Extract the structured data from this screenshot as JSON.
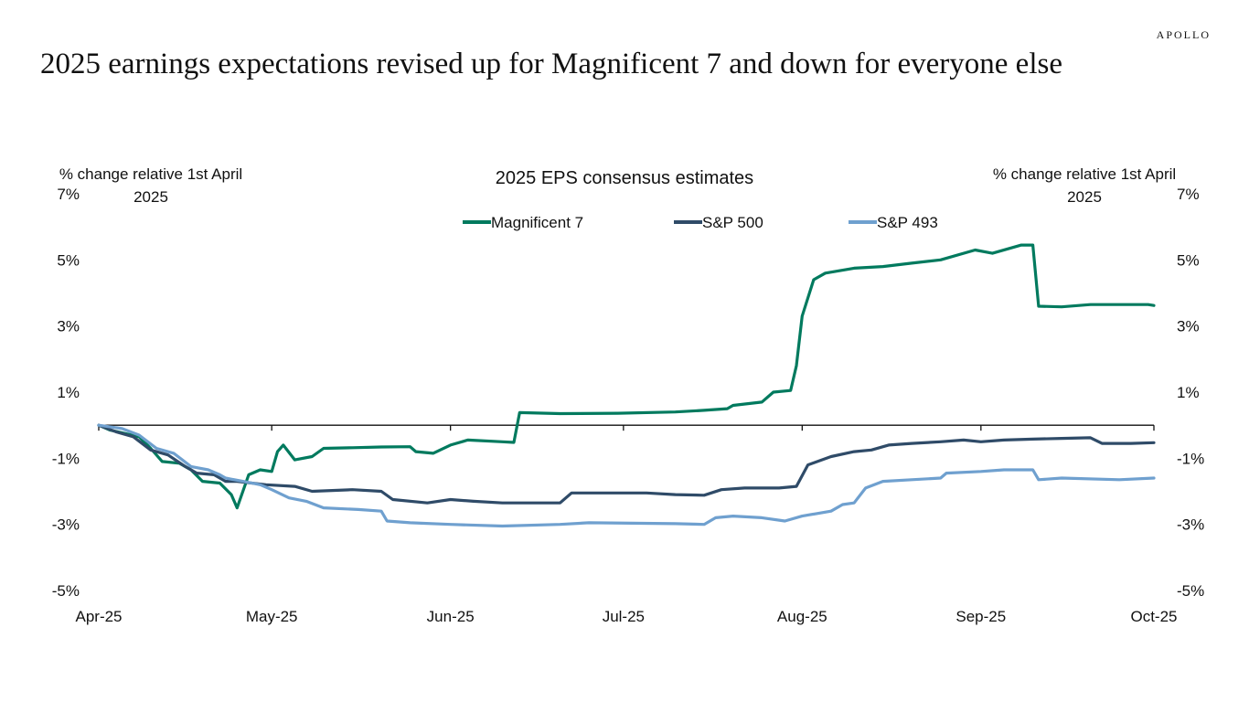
{
  "brand": "APOLLO",
  "headline": "2025 earnings expectations revised up for Magnificent 7 and down for everyone else",
  "chart_data": {
    "type": "line",
    "title": "2025 EPS consensus estimates",
    "ylabel_left": [
      "% change relative 1st April",
      "2025"
    ],
    "ylabel_right": [
      "% change relative 1st April",
      "2025"
    ],
    "ylim": [
      -5,
      7
    ],
    "yticks": [
      7,
      5,
      3,
      1,
      -1,
      -3,
      -5
    ],
    "ytick_labels": [
      "7%",
      "5%",
      "3%",
      "1%",
      "-1%",
      "-3%",
      "-5%"
    ],
    "x_range": [
      "2025-04-01",
      "2025-10-01"
    ],
    "xticks": [
      "2025-04-01",
      "2025-05-01",
      "2025-06-01",
      "2025-07-01",
      "2025-08-01",
      "2025-09-01",
      "2025-10-01"
    ],
    "xtick_labels": [
      "Apr-25",
      "May-25",
      "Jun-25",
      "Jul-25",
      "Aug-25",
      "Sep-25",
      "Oct-25"
    ],
    "legend_position": "top-center",
    "series": [
      {
        "name": "Magnificent 7",
        "color": "#007a5e",
        "points": [
          [
            "2025-04-01",
            0.0
          ],
          [
            "2025-04-03",
            -0.15
          ],
          [
            "2025-04-08",
            -0.35
          ],
          [
            "2025-04-10",
            -0.7
          ],
          [
            "2025-04-12",
            -1.1
          ],
          [
            "2025-04-15",
            -1.15
          ],
          [
            "2025-04-17",
            -1.35
          ],
          [
            "2025-04-19",
            -1.7
          ],
          [
            "2025-04-22",
            -1.75
          ],
          [
            "2025-04-24",
            -2.1
          ],
          [
            "2025-04-25",
            -2.5
          ],
          [
            "2025-04-27",
            -1.5
          ],
          [
            "2025-04-29",
            -1.35
          ],
          [
            "2025-05-01",
            -1.4
          ],
          [
            "2025-05-02",
            -0.8
          ],
          [
            "2025-05-03",
            -0.6
          ],
          [
            "2025-05-05",
            -1.05
          ],
          [
            "2025-05-08",
            -0.95
          ],
          [
            "2025-05-10",
            -0.7
          ],
          [
            "2025-05-15",
            -0.68
          ],
          [
            "2025-05-20",
            -0.66
          ],
          [
            "2025-05-25",
            -0.65
          ],
          [
            "2025-05-26",
            -0.8
          ],
          [
            "2025-05-29",
            -0.85
          ],
          [
            "2025-06-01",
            -0.6
          ],
          [
            "2025-06-04",
            -0.45
          ],
          [
            "2025-06-10",
            -0.5
          ],
          [
            "2025-06-12",
            -0.52
          ],
          [
            "2025-06-13",
            0.38
          ],
          [
            "2025-06-20",
            0.35
          ],
          [
            "2025-06-30",
            0.36
          ],
          [
            "2025-07-10",
            0.4
          ],
          [
            "2025-07-15",
            0.45
          ],
          [
            "2025-07-19",
            0.5
          ],
          [
            "2025-07-20",
            0.6
          ],
          [
            "2025-07-25",
            0.7
          ],
          [
            "2025-07-27",
            1.0
          ],
          [
            "2025-07-30",
            1.05
          ],
          [
            "2025-07-31",
            1.8
          ],
          [
            "2025-08-01",
            3.3
          ],
          [
            "2025-08-03",
            4.4
          ],
          [
            "2025-08-05",
            4.6
          ],
          [
            "2025-08-10",
            4.75
          ],
          [
            "2025-08-15",
            4.8
          ],
          [
            "2025-08-20",
            4.9
          ],
          [
            "2025-08-25",
            5.0
          ],
          [
            "2025-08-31",
            5.3
          ],
          [
            "2025-09-03",
            5.2
          ],
          [
            "2025-09-08",
            5.45
          ],
          [
            "2025-09-10",
            5.45
          ],
          [
            "2025-09-11",
            3.6
          ],
          [
            "2025-09-15",
            3.58
          ],
          [
            "2025-09-20",
            3.65
          ],
          [
            "2025-09-25",
            3.65
          ],
          [
            "2025-09-30",
            3.65
          ],
          [
            "2025-10-01",
            3.62
          ]
        ]
      },
      {
        "name": "S&P 500",
        "color": "#2f4b68",
        "points": [
          [
            "2025-04-01",
            0.0
          ],
          [
            "2025-04-04",
            -0.2
          ],
          [
            "2025-04-07",
            -0.35
          ],
          [
            "2025-04-10",
            -0.75
          ],
          [
            "2025-04-13",
            -0.9
          ],
          [
            "2025-04-16",
            -1.25
          ],
          [
            "2025-04-18",
            -1.45
          ],
          [
            "2025-04-21",
            -1.5
          ],
          [
            "2025-04-23",
            -1.7
          ],
          [
            "2025-04-25",
            -1.7
          ],
          [
            "2025-04-30",
            -1.8
          ],
          [
            "2025-05-05",
            -1.85
          ],
          [
            "2025-05-08",
            -2.0
          ],
          [
            "2025-05-15",
            -1.95
          ],
          [
            "2025-05-20",
            -2.0
          ],
          [
            "2025-05-22",
            -2.25
          ],
          [
            "2025-05-28",
            -2.35
          ],
          [
            "2025-06-01",
            -2.25
          ],
          [
            "2025-06-05",
            -2.3
          ],
          [
            "2025-06-10",
            -2.35
          ],
          [
            "2025-06-20",
            -2.35
          ],
          [
            "2025-06-22",
            -2.05
          ],
          [
            "2025-06-30",
            -2.05
          ],
          [
            "2025-07-05",
            -2.05
          ],
          [
            "2025-07-10",
            -2.1
          ],
          [
            "2025-07-15",
            -2.12
          ],
          [
            "2025-07-18",
            -1.95
          ],
          [
            "2025-07-22",
            -1.9
          ],
          [
            "2025-07-28",
            -1.9
          ],
          [
            "2025-07-31",
            -1.85
          ],
          [
            "2025-08-02",
            -1.2
          ],
          [
            "2025-08-06",
            -0.95
          ],
          [
            "2025-08-10",
            -0.8
          ],
          [
            "2025-08-13",
            -0.75
          ],
          [
            "2025-08-16",
            -0.6
          ],
          [
            "2025-08-20",
            -0.55
          ],
          [
            "2025-08-25",
            -0.5
          ],
          [
            "2025-08-29",
            -0.45
          ],
          [
            "2025-09-01",
            -0.5
          ],
          [
            "2025-09-05",
            -0.45
          ],
          [
            "2025-09-10",
            -0.42
          ],
          [
            "2025-09-15",
            -0.4
          ],
          [
            "2025-09-20",
            -0.38
          ],
          [
            "2025-09-22",
            -0.55
          ],
          [
            "2025-09-27",
            -0.55
          ],
          [
            "2025-10-01",
            -0.53
          ]
        ]
      },
      {
        "name": "S&P 493",
        "color": "#6fa0cf",
        "points": [
          [
            "2025-04-01",
            0.0
          ],
          [
            "2025-04-05",
            -0.1
          ],
          [
            "2025-04-08",
            -0.3
          ],
          [
            "2025-04-11",
            -0.7
          ],
          [
            "2025-04-14",
            -0.85
          ],
          [
            "2025-04-17",
            -1.25
          ],
          [
            "2025-04-20",
            -1.35
          ],
          [
            "2025-04-22",
            -1.5
          ],
          [
            "2025-04-23",
            -1.6
          ],
          [
            "2025-04-26",
            -1.7
          ],
          [
            "2025-04-29",
            -1.8
          ],
          [
            "2025-05-01",
            -1.95
          ],
          [
            "2025-05-04",
            -2.2
          ],
          [
            "2025-05-07",
            -2.3
          ],
          [
            "2025-05-10",
            -2.5
          ],
          [
            "2025-05-16",
            -2.55
          ],
          [
            "2025-05-20",
            -2.6
          ],
          [
            "2025-05-21",
            -2.9
          ],
          [
            "2025-05-25",
            -2.95
          ],
          [
            "2025-06-01",
            -3.0
          ],
          [
            "2025-06-10",
            -3.05
          ],
          [
            "2025-06-20",
            -3.0
          ],
          [
            "2025-06-25",
            -2.95
          ],
          [
            "2025-07-10",
            -2.98
          ],
          [
            "2025-07-15",
            -3.0
          ],
          [
            "2025-07-17",
            -2.8
          ],
          [
            "2025-07-20",
            -2.75
          ],
          [
            "2025-07-25",
            -2.8
          ],
          [
            "2025-07-29",
            -2.9
          ],
          [
            "2025-08-01",
            -2.75
          ],
          [
            "2025-08-06",
            -2.6
          ],
          [
            "2025-08-08",
            -2.4
          ],
          [
            "2025-08-10",
            -2.35
          ],
          [
            "2025-08-12",
            -1.9
          ],
          [
            "2025-08-15",
            -1.7
          ],
          [
            "2025-08-20",
            -1.65
          ],
          [
            "2025-08-25",
            -1.6
          ],
          [
            "2025-08-26",
            -1.45
          ],
          [
            "2025-09-01",
            -1.4
          ],
          [
            "2025-09-05",
            -1.35
          ],
          [
            "2025-09-10",
            -1.35
          ],
          [
            "2025-09-11",
            -1.65
          ],
          [
            "2025-09-15",
            -1.6
          ],
          [
            "2025-09-25",
            -1.65
          ],
          [
            "2025-10-01",
            -1.6
          ]
        ]
      }
    ]
  }
}
